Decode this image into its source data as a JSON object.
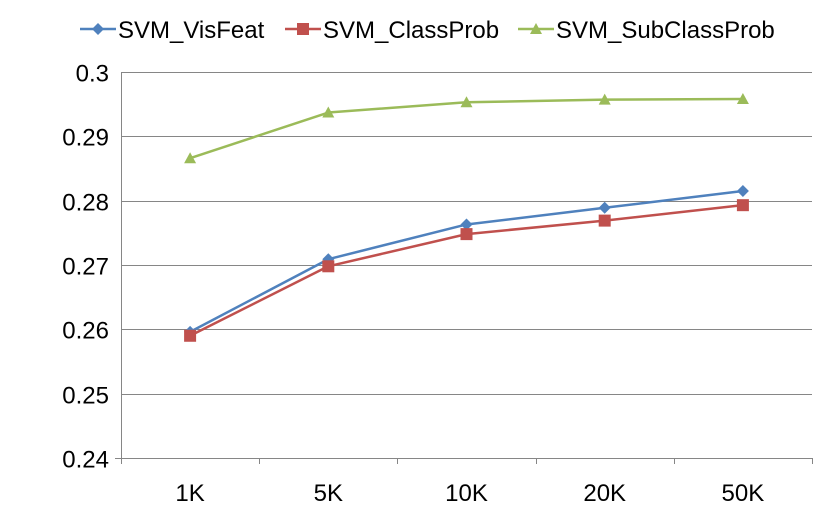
{
  "chart_data": {
    "type": "line",
    "title": "",
    "xlabel": "",
    "ylabel": "",
    "categories": [
      "1K",
      "5K",
      "10K",
      "20K",
      "50K"
    ],
    "ylim": [
      0.24,
      0.3
    ],
    "yticks": [
      0.24,
      0.25,
      0.26,
      0.27,
      0.28,
      0.29,
      0.3
    ],
    "ytick_labels": [
      "0.24",
      "0.25",
      "0.26",
      "0.27",
      "0.28",
      "0.29",
      "0.3"
    ],
    "grid": true,
    "legend_position": "top",
    "series": [
      {
        "name": "SVM_VisFeat",
        "color": "#4F81BD",
        "marker": "diamond",
        "values": [
          0.2596,
          0.2709,
          0.2763,
          0.2789,
          0.2815
        ]
      },
      {
        "name": "SVM_ClassProb",
        "color": "#C0504D",
        "marker": "square",
        "values": [
          0.259,
          0.2698,
          0.2748,
          0.2769,
          0.2793
        ]
      },
      {
        "name": "SVM_SubClassProb",
        "color": "#9BBB59",
        "marker": "triangle",
        "values": [
          0.2866,
          0.2937,
          0.2953,
          0.2957,
          0.2958
        ]
      }
    ]
  }
}
